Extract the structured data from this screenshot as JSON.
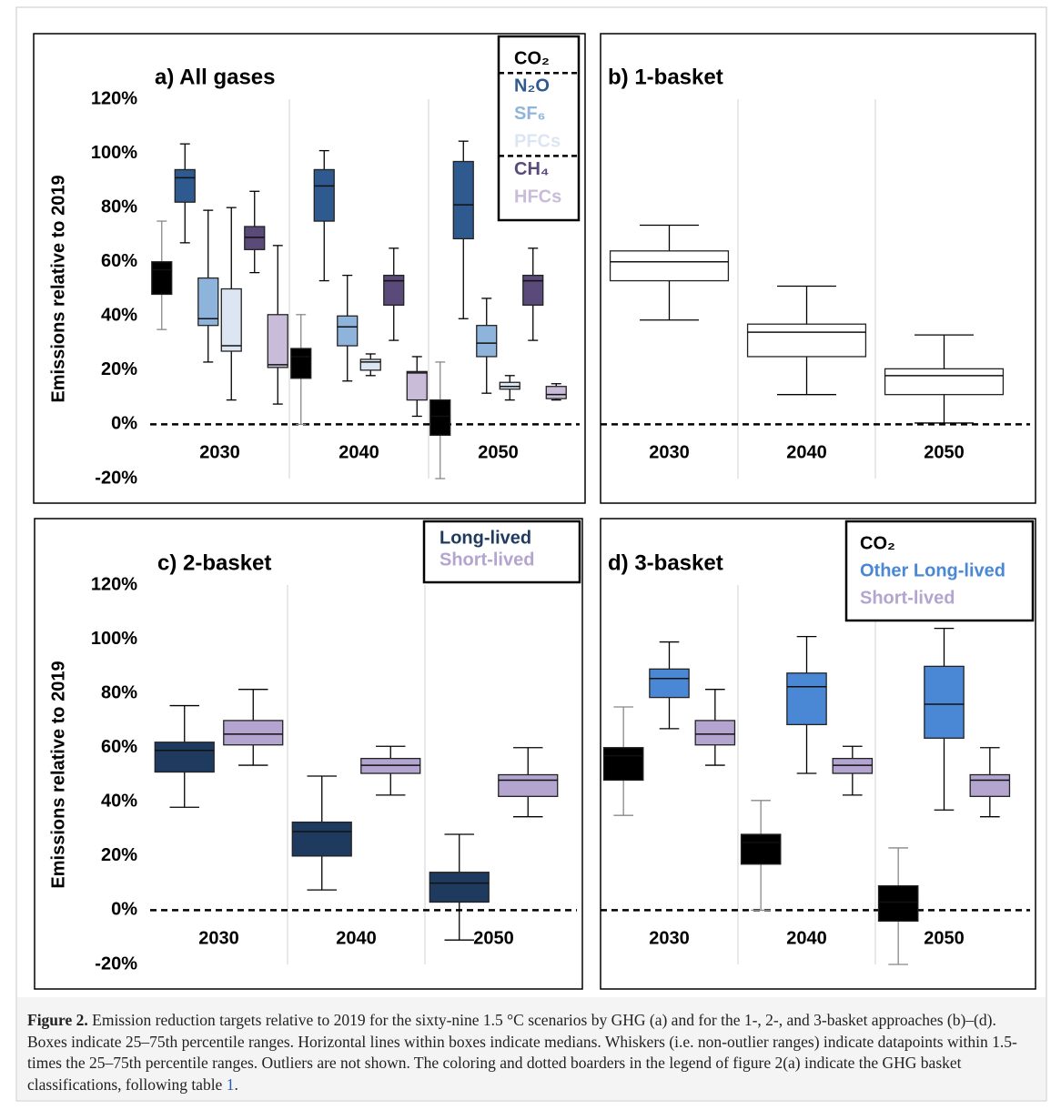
{
  "chart_data": [
    {
      "type": "box",
      "title": "a) All gases",
      "ylabel": "Emissions relative to 2019",
      "categories": [
        "2030",
        "2040",
        "2050"
      ],
      "ylim": [
        -20,
        120
      ],
      "yticks": [
        {
          "value": -20,
          "label": "-20%"
        },
        {
          "value": 0,
          "label": "0%"
        },
        {
          "value": 20,
          "label": "20%"
        },
        {
          "value": 40,
          "label": "40%"
        },
        {
          "value": 60,
          "label": "60%"
        },
        {
          "value": 80,
          "label": "80%"
        },
        {
          "value": 100,
          "label": "100%"
        },
        {
          "value": 120,
          "label": "120%"
        }
      ],
      "reference_line": 0,
      "legend": "top-right",
      "series": [
        {
          "name": "CO₂",
          "color": "#000000",
          "whisker_color": "#888888",
          "values": [
            [
              35,
              48,
              57,
              60,
              75
            ],
            [
              0,
              17,
              25,
              28,
              40.5
            ],
            [
              -20,
              -4,
              3,
              9,
              23
            ]
          ]
        },
        {
          "name": "N₂O",
          "color": "#2f5a8f",
          "values": [
            [
              67,
              82,
              91,
              94,
              103.5
            ],
            [
              53,
              75,
              88,
              94,
              101
            ],
            [
              39,
              68.5,
              81,
              97,
              104.5
            ]
          ]
        },
        {
          "name": "SF₆",
          "color": "#8fb4dc",
          "values": [
            [
              23,
              36.5,
              39,
              54,
              79
            ],
            [
              16,
              29,
              36,
              40,
              55
            ],
            [
              11.5,
              25,
              30,
              36.5,
              46.5
            ]
          ]
        },
        {
          "name": "PFCs",
          "color": "#dce6f2",
          "values": [
            [
              9,
              27,
              29,
              50,
              80
            ],
            [
              18,
              20,
              23,
              24,
              26
            ],
            [
              9,
              13,
              14,
              15.5,
              18
            ]
          ]
        },
        {
          "name": "CH₄",
          "color": "#5a4a7a",
          "values": [
            [
              56,
              64.5,
              69,
              73,
              86
            ],
            [
              31,
              44,
              53,
              55,
              65
            ],
            [
              31,
              44,
              53,
              55,
              65
            ]
          ]
        },
        {
          "name": "HFCs",
          "color": "#c8bcd8",
          "values": [
            [
              7.5,
              21,
              22,
              40.5,
              66
            ],
            [
              3,
              9,
              19,
              19.5,
              25
            ],
            [
              9,
              9.5,
              11,
              14,
              15
            ]
          ]
        }
      ]
    },
    {
      "type": "box",
      "title": "b) 1-basket",
      "categories": [
        "2030",
        "2040",
        "2050"
      ],
      "ylim": [
        -20,
        120
      ],
      "reference_line": 0,
      "series": [
        {
          "color": "#ffffff",
          "values": [
            [
              38.5,
              53,
              60,
              64,
              73.5
            ],
            [
              11,
              25,
              34,
              37,
              51
            ],
            [
              0.5,
              11,
              18,
              20.5,
              33
            ]
          ]
        }
      ]
    },
    {
      "type": "box",
      "title": "c) 2-basket",
      "ylabel": "Emissions relative to 2019",
      "categories": [
        "2030",
        "2040",
        "2050"
      ],
      "ylim": [
        -20,
        120
      ],
      "yticks": [
        {
          "value": -20,
          "label": "-20%"
        },
        {
          "value": 0,
          "label": "0%"
        },
        {
          "value": 20,
          "label": "20%"
        },
        {
          "value": 40,
          "label": "40%"
        },
        {
          "value": 60,
          "label": "60%"
        },
        {
          "value": 80,
          "label": "80%"
        },
        {
          "value": 100,
          "label": "100%"
        },
        {
          "value": 120,
          "label": "120%"
        }
      ],
      "reference_line": 0,
      "legend": "top-right",
      "series": [
        {
          "name": "Long-lived",
          "color": "#1f3a5f",
          "values": [
            [
              38,
              51,
              59,
              62,
              75.5
            ],
            [
              7.5,
              20,
              29,
              32.5,
              49.5
            ],
            [
              -11,
              3,
              10,
              14,
              28
            ]
          ]
        },
        {
          "name": "Short-lived",
          "color": "#b3a5cf",
          "values": [
            [
              53.5,
              61,
              65,
              70,
              81.5
            ],
            [
              42.5,
              50.5,
              53.5,
              56,
              60.5
            ],
            [
              34.5,
              42,
              48,
              50,
              60
            ]
          ]
        }
      ]
    },
    {
      "type": "box",
      "title": "d) 3-basket",
      "categories": [
        "2030",
        "2040",
        "2050"
      ],
      "ylim": [
        -20,
        120
      ],
      "reference_line": 0,
      "legend": "top-right",
      "series": [
        {
          "name": "CO₂",
          "color": "#000000",
          "whisker_color": "#888888",
          "values": [
            [
              35,
              48,
              57,
              60,
              75
            ],
            [
              0,
              17,
              25,
              28,
              40.5
            ],
            [
              -20,
              -4,
              3,
              9,
              23
            ]
          ]
        },
        {
          "name": "Other Long-lived",
          "color": "#4a87d4",
          "values": [
            [
              67,
              78.5,
              85.5,
              89,
              99
            ],
            [
              50.5,
              68.5,
              82.5,
              87.5,
              101
            ],
            [
              37,
              63.5,
              76,
              90,
              104
            ]
          ]
        },
        {
          "name": "Short-lived",
          "color": "#b3a5cf",
          "values": [
            [
              53.5,
              61,
              65,
              70,
              81.5
            ],
            [
              42.5,
              50.5,
              53.5,
              56,
              60.5
            ],
            [
              34.5,
              42,
              48,
              50,
              60
            ]
          ]
        }
      ]
    }
  ],
  "caption": {
    "label": "Figure 2.",
    "text": "Emission reduction targets relative to 2019 for the sixty-nine 1.5 °C scenarios by GHG (a) and for the 1-, 2-, and 3-basket approaches (b)–(d). Boxes indicate 25–75th percentile ranges. Horizontal lines within boxes indicate medians. Whiskers (i.e. non-outlier ranges) indicate datapoints within 1.5-times the 25–75th percentile ranges. Outliers are not shown. The coloring and dotted boarders in the legend of figure 2(a) indicate the GHG basket classifications, following table",
    "ref": "1",
    "end": "."
  }
}
